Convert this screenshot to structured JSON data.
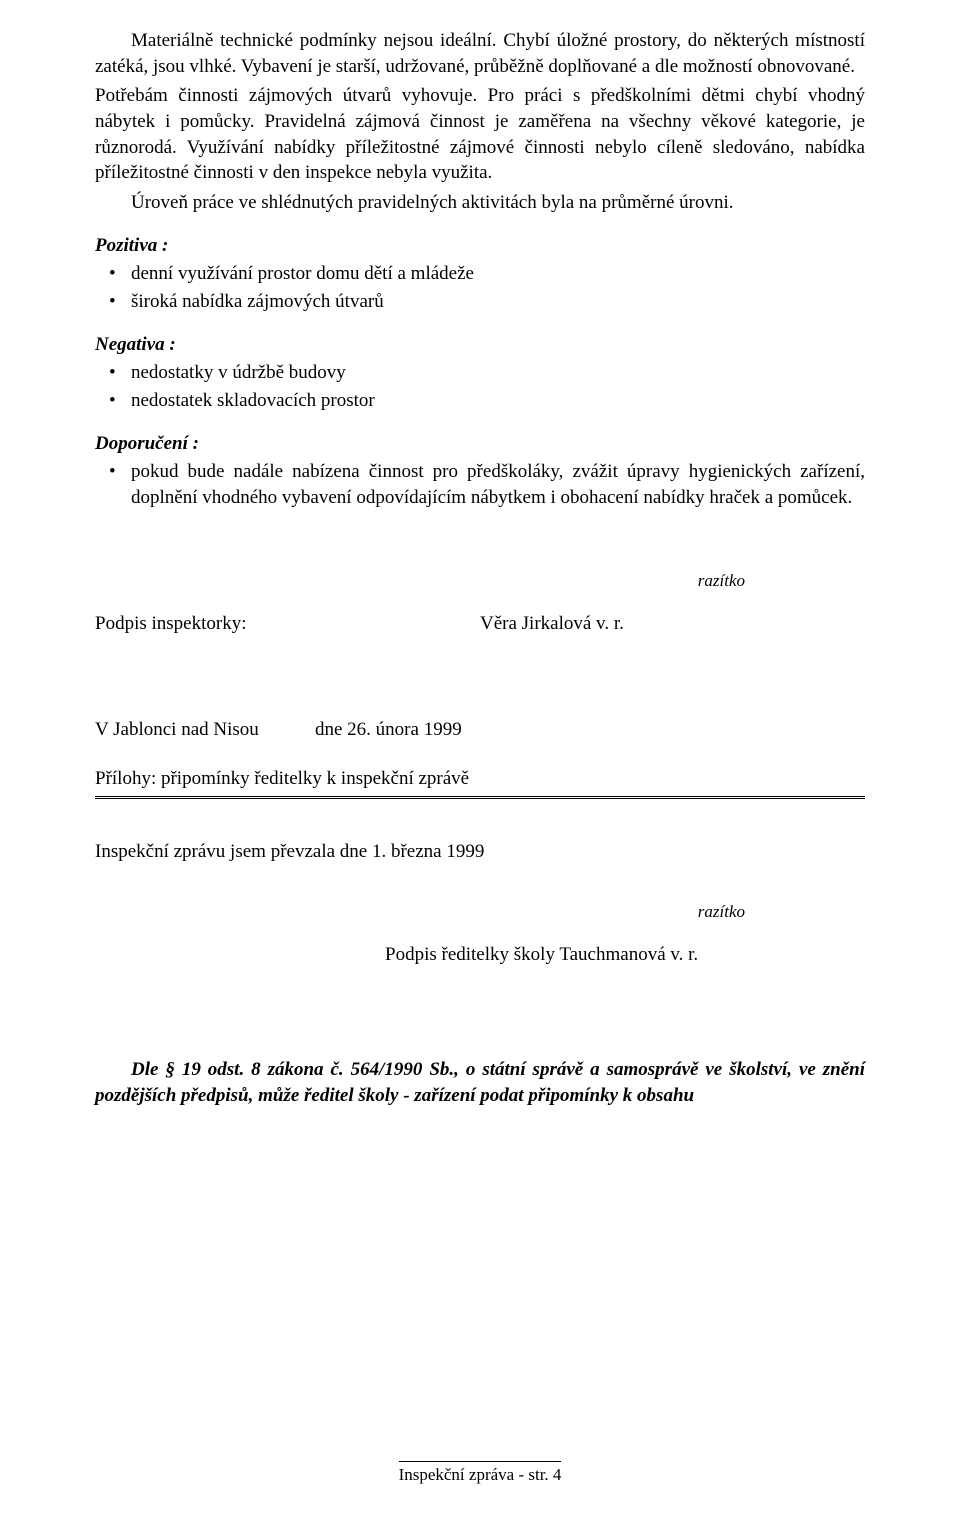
{
  "paragraphs": {
    "p1": "Materiálně technické podmínky nejsou ideální. Chybí úložné prostory, do některých místností zatéká, jsou vlhké. Vybavení je starší, udržované, průběžně doplňované a dle možností obnovované.",
    "p2": "Potřebám činnosti zájmových útvarů vyhovuje. Pro práci s předškolními dětmi chybí vhodný nábytek i pomůcky. Pravidelná zájmová činnost je zaměřena na všechny věkové kategorie, je různorodá. Využívání nabídky příležitostné zájmové činnosti nebylo cíleně sledováno, nabídka příležitostné činnosti v den inspekce nebyla využita.",
    "p3": "Úroveň práce ve shlédnutých pravidelných aktivitách byla na průměrné úrovni."
  },
  "pozitiva": {
    "heading": "Pozitiva :",
    "items": [
      "denní využívání prostor domu dětí a mládeže",
      "široká nabídka zájmových útvarů"
    ]
  },
  "negativa": {
    "heading": "Negativa :",
    "items": [
      "nedostatky v údržbě budovy",
      "nedostatek skladovacích prostor"
    ]
  },
  "doporuceni": {
    "heading": "Doporučení :",
    "items": [
      "pokud bude nadále nabízena činnost pro předškoláky, zvážit úpravy hygienických zařízení, doplnění vhodného vybavení odpovídajícím nábytkem i obohacení nabídky hraček a pomůcek."
    ]
  },
  "razitko": "razítko",
  "signature": {
    "label": "Podpis inspektorky:",
    "name": "Věra Jirkalová v. r."
  },
  "placeDate": {
    "place": "V Jablonci nad Nisou",
    "date": "dne 26. února 1999"
  },
  "attachments": "Přílohy: připomínky ředitelky k inspekční zprávě",
  "receipt": "Inspekční zprávu jsem převzala dne  1. března 1999",
  "principalSignature": "Podpis ředitelky školy  Tauchmanová v. r.",
  "legal": "Dle § 19 odst. 8 zákona č. 564/1990 Sb., o státní správě a samosprávě ve školství, ve znění pozdějších předpisů, může ředitel školy - zařízení podat připomínky k obsahu",
  "footer": "Inspekční zpráva - str. 4"
}
